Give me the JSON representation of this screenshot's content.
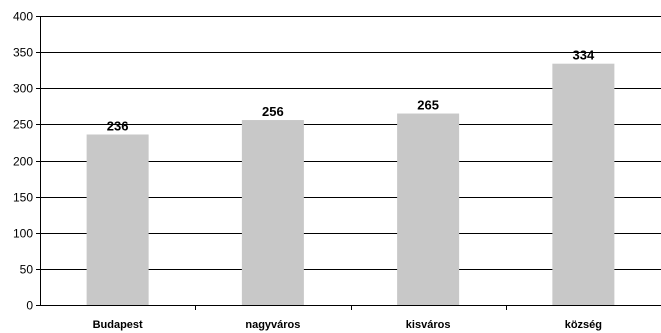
{
  "chart_data": {
    "type": "bar",
    "categories": [
      "Budapest",
      "nagyváros",
      "kisváros",
      "község"
    ],
    "values": [
      236,
      256,
      265,
      334
    ],
    "data_labels": [
      "236",
      "256",
      "265",
      "334"
    ],
    "ylim": [
      0,
      400
    ],
    "yticks": [
      0,
      50,
      100,
      150,
      200,
      250,
      300,
      350,
      400
    ],
    "ytick_labels": [
      "0",
      "50",
      "100",
      "150",
      "200",
      "250",
      "300",
      "350",
      "400"
    ],
    "grid": true,
    "legend": "none",
    "colors": {
      "bar": "#c8c8c8",
      "grid": "#000000",
      "axis": "#000000"
    }
  }
}
